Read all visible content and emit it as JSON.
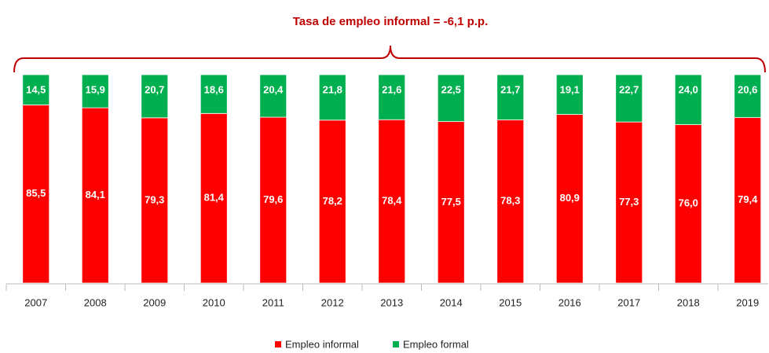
{
  "chart_data": {
    "type": "stacked_bar",
    "annotation": "Tasa de empleo informal = -6,1 p.p.",
    "categories": [
      "2007",
      "2008",
      "2009",
      "2010",
      "2011",
      "2012",
      "2013",
      "2014",
      "2015",
      "2016",
      "2017",
      "2018",
      "2019"
    ],
    "ylim": [
      0,
      100
    ],
    "series": [
      {
        "name": "Empleo informal",
        "color": "#ff0000",
        "values": [
          85.5,
          84.1,
          79.3,
          81.4,
          79.6,
          78.2,
          78.4,
          77.5,
          78.3,
          80.9,
          77.3,
          76.0,
          79.4
        ],
        "value_labels": [
          "85,5",
          "84,1",
          "79,3",
          "81,4",
          "79,6",
          "78,2",
          "78,4",
          "77,5",
          "78,3",
          "80,9",
          "77,3",
          "76,0",
          "79,4"
        ]
      },
      {
        "name": "Empleo formal",
        "color": "#00b050",
        "values": [
          14.5,
          15.9,
          20.7,
          18.6,
          20.4,
          21.8,
          21.6,
          22.5,
          21.7,
          19.1,
          22.7,
          24.0,
          20.6
        ],
        "value_labels": [
          "14,5",
          "15,9",
          "20,7",
          "18,6",
          "20,4",
          "21,8",
          "21,6",
          "22,5",
          "21,7",
          "19,1",
          "22,7",
          "24,0",
          "20,6"
        ]
      }
    ]
  }
}
